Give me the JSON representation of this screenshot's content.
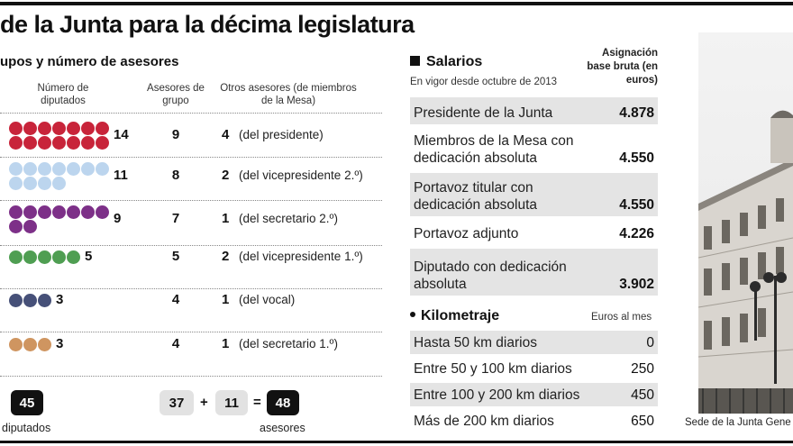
{
  "title": "de la Junta para la décima legislatura",
  "subtitle": "upos y número de asesores",
  "groups_table": {
    "headers": {
      "diputados": "Número de diputados",
      "asesores_grupo": "Asesores de grupo",
      "otros": "Otros asesores (de miembros de la Mesa)"
    },
    "rows": [
      {
        "diputados": "14",
        "asesores_grupo": "9",
        "otros": "4",
        "otros_label": "(del presidente)",
        "color": "#c8243a",
        "dots": 14
      },
      {
        "diputados": "11",
        "asesores_grupo": "8",
        "otros": "2",
        "otros_label": "(del vicepresidente 2.º)",
        "color": "#bcd5ee",
        "dots": 11
      },
      {
        "diputados": "9",
        "asesores_grupo": "7",
        "otros": "1",
        "otros_label": "(del secretario 2.º)",
        "color": "#7d3088",
        "dots": 9
      },
      {
        "diputados": "5",
        "asesores_grupo": "5",
        "otros": "2",
        "otros_label": "(del vicepresidente 1.º)",
        "color": "#4f9e52",
        "dots": 5
      },
      {
        "diputados": "3",
        "asesores_grupo": "4",
        "otros": "1",
        "otros_label": "(del vocal)",
        "color": "#465078",
        "dots": 3
      },
      {
        "diputados": "3",
        "asesores_grupo": "4",
        "otros": "1",
        "otros_label": "(del secretario 1.º)",
        "color": "#cf9560",
        "dots": 3
      }
    ],
    "totals": {
      "diputados": "45",
      "diputados_label": "diputados",
      "grupo": "37",
      "plus": "+",
      "otros": "11",
      "equals": "=",
      "asesores": "48",
      "asesores_label": "asesores"
    }
  },
  "salarios": {
    "title": "Salarios",
    "note": "En vigor desde octubre de 2013",
    "column_header": "Asignación base bruta (en euros)",
    "rows": [
      {
        "label": "Presidente de la Junta",
        "value": "4.878"
      },
      {
        "label": "Miembros de la Mesa con dedicación absoluta",
        "value": "4.550"
      },
      {
        "label": "Portavoz titular con dedicación absoluta",
        "value": "4.550"
      },
      {
        "label": "Portavoz adjunto",
        "value": "4.226"
      },
      {
        "label": "Diputado con dedicación absoluta",
        "value": "3.902"
      }
    ]
  },
  "kilometraje": {
    "title": "Kilometraje",
    "column_header": "Euros al mes",
    "rows": [
      {
        "label": "Hasta 50 km diarios",
        "value": "0"
      },
      {
        "label": "Entre 50 y 100 km diarios",
        "value": "250"
      },
      {
        "label": "Entre 100 y 200 km diarios",
        "value": "450"
      },
      {
        "label": "Más de 200 km diarios",
        "value": "650"
      }
    ]
  },
  "photo_caption": "Sede de la Junta Gene"
}
